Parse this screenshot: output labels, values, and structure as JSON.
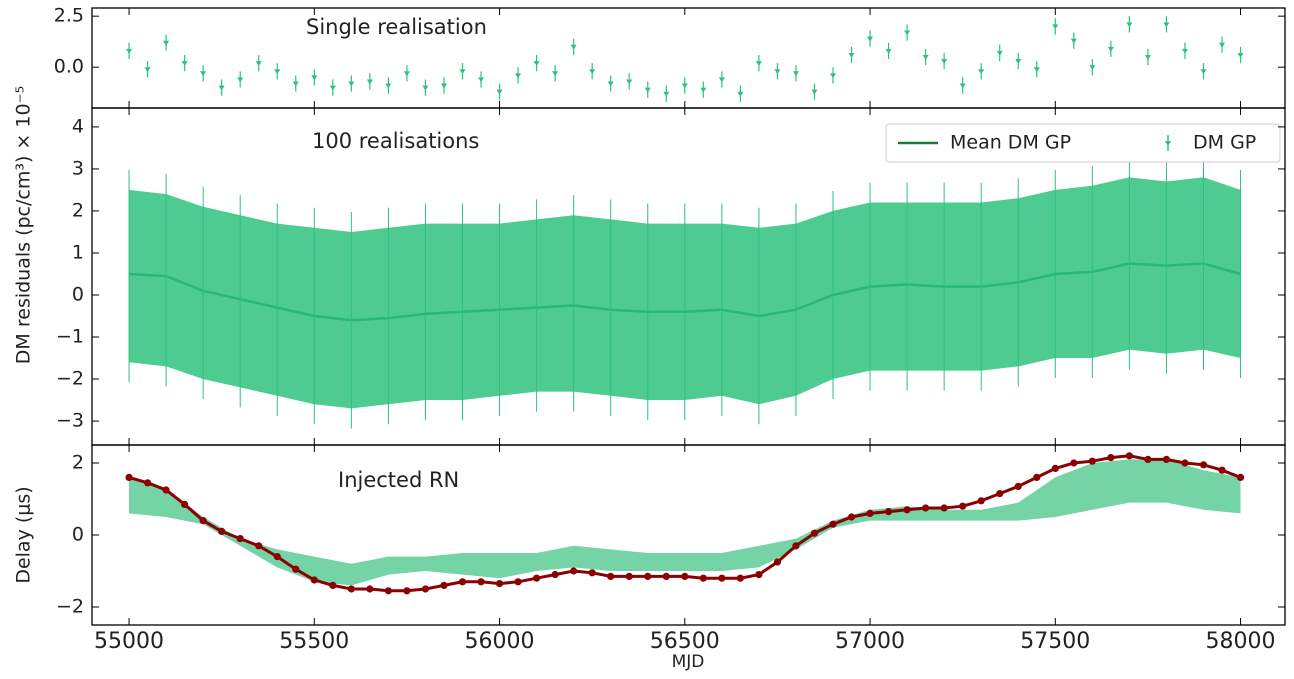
{
  "chart_data": [
    {
      "type": "errorbar",
      "annotation": "Single realisation",
      "ylabel": "DM residuals (pc/cm³) × 10⁻⁵",
      "color": "#2ec27e",
      "ylim": [
        -2.0,
        2.9
      ],
      "yticks": [
        {
          "value": 0,
          "label": "0.0"
        },
        2.5
      ],
      "x": [
        55000,
        55050,
        55100,
        55150,
        55200,
        55250,
        55300,
        55350,
        55400,
        55450,
        55500,
        55550,
        55600,
        55650,
        55700,
        55750,
        55800,
        55850,
        55900,
        55950,
        56000,
        56050,
        56100,
        56150,
        56200,
        56250,
        56300,
        56350,
        56400,
        56450,
        56500,
        56550,
        56600,
        56650,
        56700,
        56750,
        56800,
        56850,
        56900,
        56950,
        57000,
        57050,
        57100,
        57150,
        57200,
        57250,
        57300,
        57350,
        57400,
        57450,
        57500,
        57550,
        57600,
        57650,
        57700,
        57750,
        57800,
        57850,
        57900,
        57950,
        58000
      ],
      "values": [
        0.8,
        -0.1,
        1.2,
        0.2,
        -0.3,
        -1.0,
        -0.6,
        0.2,
        -0.2,
        -0.8,
        -0.5,
        -1.0,
        -0.8,
        -0.7,
        -0.9,
        -0.3,
        -1.0,
        -0.9,
        -0.2,
        -0.6,
        -1.2,
        -0.4,
        0.2,
        -0.3,
        1.0,
        -0.2,
        -0.8,
        -0.7,
        -1.1,
        -1.3,
        -0.9,
        -1.1,
        -0.6,
        -1.3,
        0.2,
        -0.2,
        -0.3,
        -1.2,
        -0.4,
        0.6,
        1.4,
        0.8,
        1.7,
        0.5,
        0.3,
        -0.9,
        -0.2,
        0.7,
        0.3,
        -0.1,
        2.0,
        1.3,
        0.0,
        0.9,
        2.1,
        0.5,
        2.1,
        0.8,
        -0.2,
        1.1,
        0.6
      ],
      "yerr": 0.4
    },
    {
      "type": "line-band",
      "annotation": "100 realisations",
      "ylim": [
        -3.57,
        4.45
      ],
      "yticks": [
        {
          "value": -3,
          "label": "−3"
        },
        {
          "value": -2,
          "label": "−2"
        },
        {
          "value": -1,
          "label": "−1"
        },
        0,
        1,
        2,
        3,
        4
      ],
      "legend": "upper right",
      "series": [
        {
          "name": "Mean DM GP",
          "color": "#1e7a3c",
          "x": [
            55000,
            55100,
            55200,
            55300,
            55400,
            55500,
            55600,
            55700,
            55800,
            55900,
            56000,
            56100,
            56200,
            56300,
            56400,
            56500,
            56600,
            56700,
            56800,
            56900,
            57000,
            57100,
            57200,
            57300,
            57400,
            57500,
            57600,
            57700,
            57800,
            57900,
            58000
          ],
          "values": [
            0.5,
            0.45,
            0.1,
            -0.1,
            -0.3,
            -0.5,
            -0.6,
            -0.55,
            -0.45,
            -0.4,
            -0.35,
            -0.3,
            -0.25,
            -0.35,
            -0.4,
            -0.4,
            -0.35,
            -0.5,
            -0.35,
            0.0,
            0.2,
            0.25,
            0.2,
            0.2,
            0.3,
            0.5,
            0.55,
            0.75,
            0.7,
            0.75,
            0.5
          ]
        },
        {
          "name": "DM GP",
          "color": "#2ec27e",
          "x": [
            55000,
            55100,
            55200,
            55300,
            55400,
            55500,
            55600,
            55700,
            55800,
            55900,
            56000,
            56100,
            56200,
            56300,
            56400,
            56500,
            56600,
            56700,
            56800,
            56900,
            57000,
            57100,
            57200,
            57300,
            57400,
            57500,
            57600,
            57700,
            57800,
            57900,
            58000
          ],
          "lower": [
            -1.6,
            -1.7,
            -2.0,
            -2.2,
            -2.4,
            -2.6,
            -2.7,
            -2.6,
            -2.5,
            -2.5,
            -2.4,
            -2.3,
            -2.3,
            -2.4,
            -2.5,
            -2.5,
            -2.4,
            -2.6,
            -2.4,
            -2.0,
            -1.8,
            -1.8,
            -1.8,
            -1.8,
            -1.7,
            -1.5,
            -1.5,
            -1.3,
            -1.4,
            -1.3,
            -1.5
          ],
          "upper": [
            2.5,
            2.4,
            2.1,
            1.9,
            1.7,
            1.6,
            1.5,
            1.6,
            1.7,
            1.7,
            1.7,
            1.8,
            1.9,
            1.8,
            1.7,
            1.7,
            1.7,
            1.6,
            1.7,
            2.0,
            2.2,
            2.2,
            2.2,
            2.2,
            2.3,
            2.5,
            2.6,
            2.8,
            2.7,
            2.8,
            2.5
          ]
        }
      ]
    },
    {
      "type": "line-band",
      "annotation": "Injected RN",
      "ylabel": "Delay (μs)",
      "xlabel": "MJD",
      "xlim": [
        54900,
        58120
      ],
      "xticks": [
        55000,
        55500,
        56000,
        56500,
        57000,
        57500,
        58000
      ],
      "ylim": [
        -2.5,
        2.5
      ],
      "yticks": [
        {
          "value": -2,
          "label": "−2"
        },
        0,
        2
      ],
      "color": "#8b0000",
      "x": [
        55000,
        55050,
        55100,
        55150,
        55200,
        55250,
        55300,
        55350,
        55400,
        55450,
        55500,
        55550,
        55600,
        55650,
        55700,
        55750,
        55800,
        55850,
        55900,
        55950,
        56000,
        56050,
        56100,
        56150,
        56200,
        56250,
        56300,
        56350,
        56400,
        56450,
        56500,
        56550,
        56600,
        56650,
        56700,
        56750,
        56800,
        56850,
        56900,
        56950,
        57000,
        57050,
        57100,
        57150,
        57200,
        57250,
        57300,
        57350,
        57400,
        57450,
        57500,
        57550,
        57600,
        57650,
        57700,
        57750,
        57800,
        57850,
        57900,
        57950,
        58000
      ],
      "values": [
        1.6,
        1.45,
        1.25,
        0.85,
        0.4,
        0.1,
        -0.1,
        -0.3,
        -0.6,
        -0.95,
        -1.25,
        -1.4,
        -1.5,
        -1.5,
        -1.55,
        -1.55,
        -1.5,
        -1.4,
        -1.3,
        -1.3,
        -1.35,
        -1.3,
        -1.2,
        -1.1,
        -1.0,
        -1.05,
        -1.15,
        -1.15,
        -1.15,
        -1.15,
        -1.15,
        -1.2,
        -1.2,
        -1.2,
        -1.1,
        -0.75,
        -0.3,
        0.05,
        0.3,
        0.5,
        0.6,
        0.65,
        0.7,
        0.75,
        0.75,
        0.8,
        0.95,
        1.15,
        1.35,
        1.6,
        1.85,
        2.0,
        2.05,
        2.15,
        2.2,
        2.1,
        2.1,
        2.0,
        1.95,
        1.8,
        1.6
      ],
      "band": {
        "color": "#5ccc96",
        "x": [
          55000,
          55100,
          55200,
          55300,
          55400,
          55500,
          55600,
          55700,
          55800,
          55900,
          56000,
          56100,
          56200,
          56300,
          56400,
          56500,
          56600,
          56700,
          56800,
          56900,
          57000,
          57100,
          57200,
          57300,
          57400,
          57500,
          57600,
          57700,
          57800,
          57900,
          58000
        ],
        "lower": [
          0.6,
          0.5,
          0.3,
          -0.3,
          -0.9,
          -1.3,
          -1.4,
          -1.1,
          -1.0,
          -1.1,
          -1.2,
          -1.0,
          -0.9,
          -1.0,
          -1.0,
          -1.0,
          -1.0,
          -0.9,
          -0.4,
          0.2,
          0.4,
          0.4,
          0.4,
          0.4,
          0.4,
          0.5,
          0.7,
          0.9,
          0.9,
          0.7,
          0.6
        ],
        "upper": [
          1.6,
          1.3,
          0.5,
          -0.1,
          -0.4,
          -0.6,
          -0.8,
          -0.6,
          -0.6,
          -0.5,
          -0.5,
          -0.5,
          -0.3,
          -0.4,
          -0.5,
          -0.5,
          -0.5,
          -0.3,
          -0.1,
          0.4,
          0.7,
          0.8,
          0.7,
          0.7,
          0.9,
          1.6,
          2.0,
          2.1,
          2.1,
          1.8,
          1.6
        ]
      }
    }
  ]
}
